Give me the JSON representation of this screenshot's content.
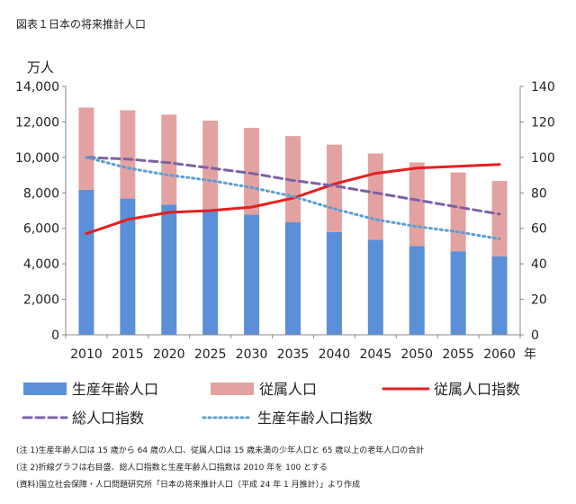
{
  "figure_title": "図表１日本の将来推計人口",
  "notes": [
    "(注 1)生産年齢人口は 15 歳から 64 歳の人口、従属人口は 15 歳未満の少年人口と 65 歳以上の老年人口の合計",
    "(注 2)折線グラフは右目盛、総人口指数と生産年齢人口指数は 2010 年を 100 とする",
    "(資料)国立社会保障・人口問題研究所「日本の将来推計人口（平成 24 年 1 月推計）」より作成"
  ],
  "colors": {
    "working_age": "#5b8fd8",
    "dependent": "#e3a2a2",
    "dependent_index": "#e32020",
    "total_index": "#7d62a5",
    "working_index": "#5a9fd0"
  },
  "chart_data": {
    "type": "bar",
    "stacked": true,
    "title": "図表１日本の将来推計人口",
    "categories": [
      "2010",
      "2015",
      "2020",
      "2025",
      "2030",
      "2035",
      "2040",
      "2045",
      "2050",
      "2055",
      "2060"
    ],
    "xlabel": "年",
    "ylabel_left": "万人",
    "ylim_left": [
      0,
      14000
    ],
    "yticks_left": [
      "0",
      "2,000",
      "4,000",
      "6,000",
      "8,000",
      "10,000",
      "12,000",
      "14,000"
    ],
    "ylim_right": [
      0,
      140
    ],
    "yticks_right": [
      "0",
      "20",
      "40",
      "60",
      "80",
      "100",
      "120",
      "140"
    ],
    "bar_series": [
      {
        "name": "生産年齢人口",
        "values": [
          8170,
          7680,
          7340,
          7090,
          6770,
          6340,
          5790,
          5350,
          5000,
          4710,
          4420
        ]
      },
      {
        "name": "従属人口",
        "values": [
          4640,
          4980,
          5070,
          4980,
          4890,
          4860,
          4930,
          4870,
          4710,
          4440,
          4250
        ]
      }
    ],
    "line_series": [
      {
        "name": "従属人口指数",
        "axis": "right",
        "style": "solid",
        "values": [
          57,
          65,
          69,
          70,
          72,
          77,
          85,
          91,
          94,
          95,
          96
        ]
      },
      {
        "name": "総人口指数",
        "axis": "right",
        "style": "dashed",
        "values": [
          100,
          99,
          97,
          94,
          91,
          87,
          84,
          80,
          76,
          72,
          68
        ]
      },
      {
        "name": "生産年齢人口指数",
        "axis": "right",
        "style": "dotted",
        "values": [
          100,
          94,
          90,
          87,
          83,
          78,
          71,
          65,
          61,
          58,
          54
        ]
      }
    ],
    "grid": false
  }
}
